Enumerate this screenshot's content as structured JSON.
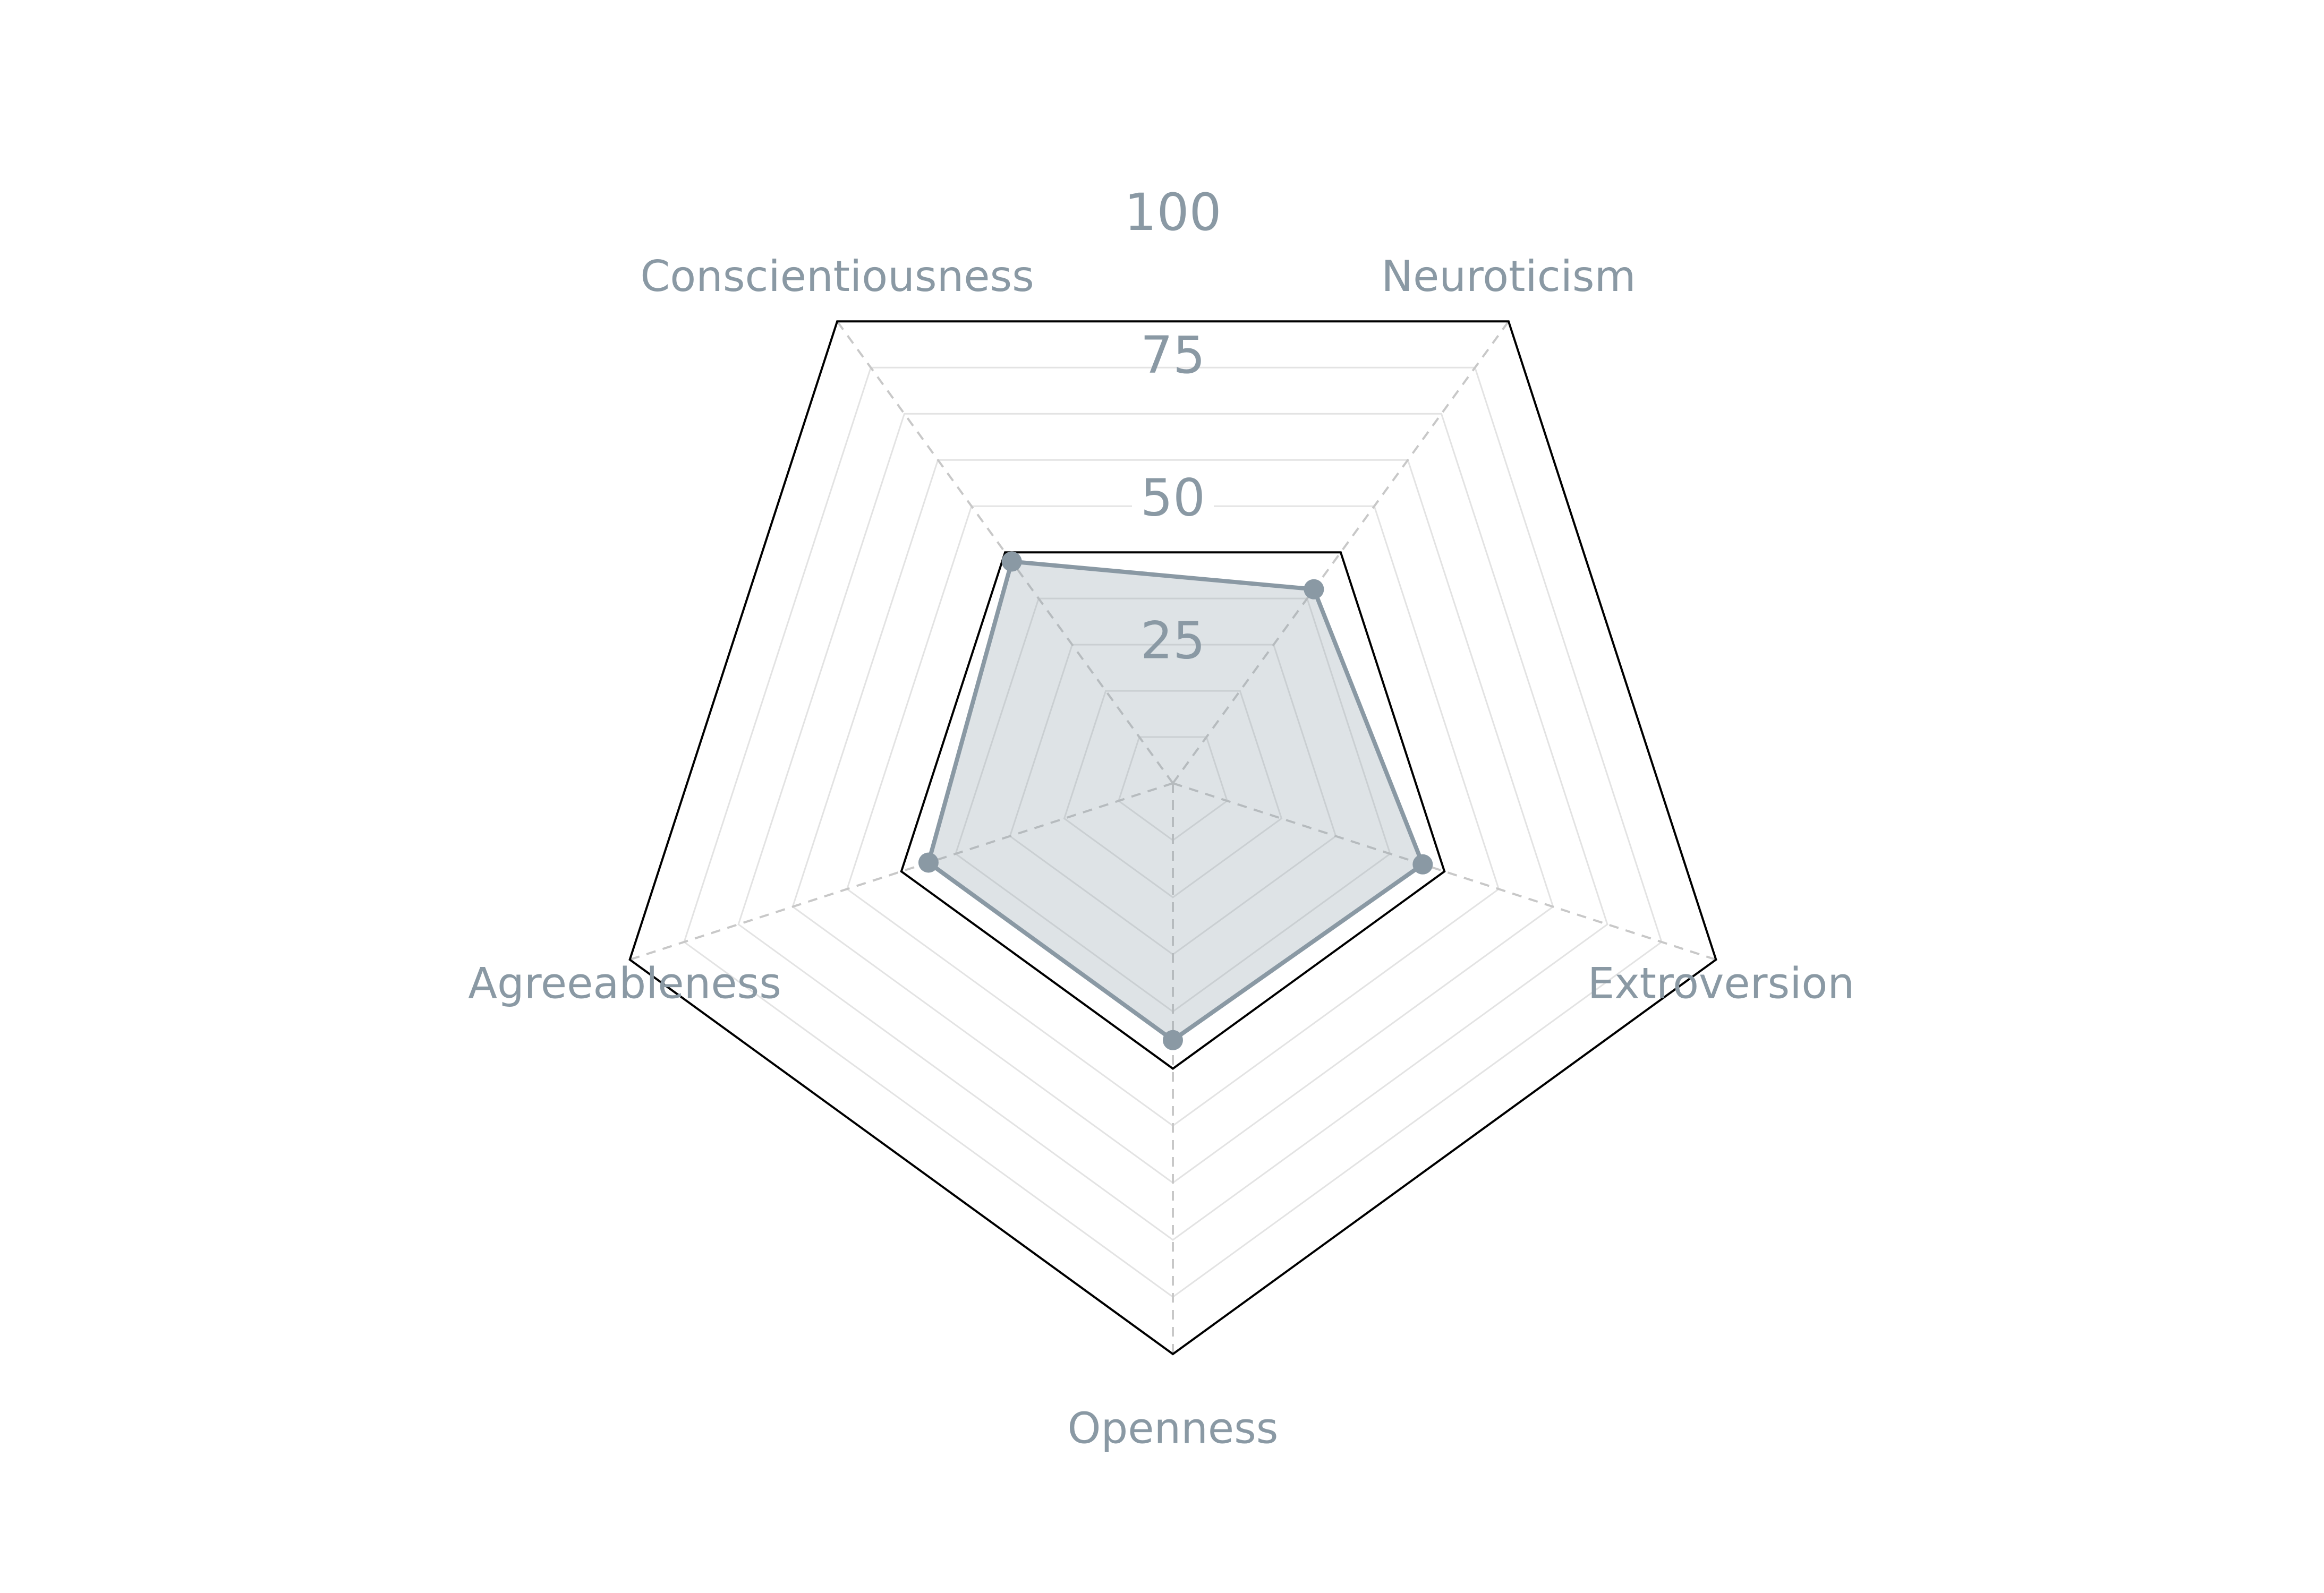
{
  "chart_data": {
    "type": "radar",
    "categories": [
      "Neuroticism",
      "Conscientiousness",
      "Agreeableness",
      "Openness",
      "Extroversion"
    ],
    "series": [
      {
        "values": [
          42,
          48,
          45,
          45,
          46
        ]
      }
    ],
    "ticks": [
      "25",
      "50",
      "75",
      "100"
    ],
    "tick_values": [
      25,
      50,
      75,
      100
    ],
    "outlined_rings": [
      50,
      100
    ],
    "minor_ring_step": 10,
    "rlim": [
      0,
      100
    ],
    "grid": true,
    "colors": {
      "series": "#8A99A4",
      "fill": "#8A99A4",
      "text": "#8A99A4",
      "outer_ring": "#000000",
      "grid": "#E3E3E3",
      "spokes": "#C8C8C8"
    }
  }
}
